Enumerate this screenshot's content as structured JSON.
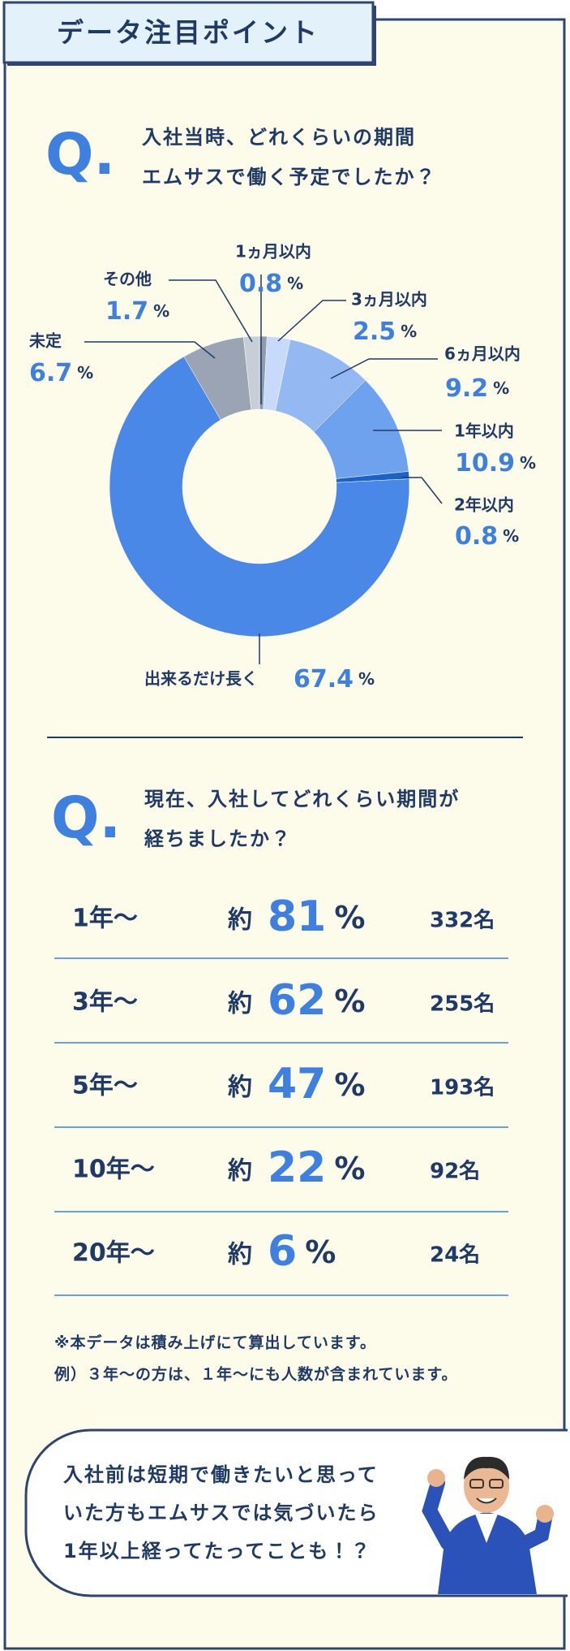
{
  "header": {
    "title": "データ注目ポイント"
  },
  "chart_data": {
    "type": "donut",
    "q_mark": "Q.",
    "question": [
      "入社当時、どれくらいの期間",
      "エムサスで働く予定でしたか？"
    ],
    "categories": [
      "1ヵ月以内",
      "3ヵ月以内",
      "6ヵ月以内",
      "1年以内",
      "2年以内",
      "出来るだけ長く",
      "未定",
      "その他"
    ],
    "values": [
      0.8,
      2.5,
      9.2,
      10.9,
      0.8,
      67.4,
      6.7,
      1.7
    ],
    "colors": [
      "#8f9bb0",
      "#c7dafa",
      "#94b9f2",
      "#6ea2ee",
      "#1d62c7",
      "#4a88e8",
      "#9aa4b4",
      "#c8ced8"
    ],
    "unit": "%"
  },
  "survey": {
    "q_mark": "Q.",
    "question": [
      "現在、入社してどれくらい期間が",
      "経ちましたか？"
    ],
    "prefix": "約",
    "unit": "%",
    "rows": [
      {
        "period": "1年〜",
        "percent": 81,
        "count": "332名"
      },
      {
        "period": "3年〜",
        "percent": 62,
        "count": "255名"
      },
      {
        "period": "5年〜",
        "percent": 47,
        "count": "193名"
      },
      {
        "period": "10年〜",
        "percent": 22,
        "count": "92名"
      },
      {
        "period": "20年〜",
        "percent": 6,
        "count": "24名"
      }
    ],
    "notes": [
      "※本データは積み上げにて算出しています。",
      "例）３年〜の方は、１年〜にも人数が含まれています。"
    ]
  },
  "callout": {
    "lines": [
      "入社前は短期で働きたいと思って",
      "いた方もエムサスでは気づいたら",
      "1年以上経ってたってことも！？"
    ]
  }
}
